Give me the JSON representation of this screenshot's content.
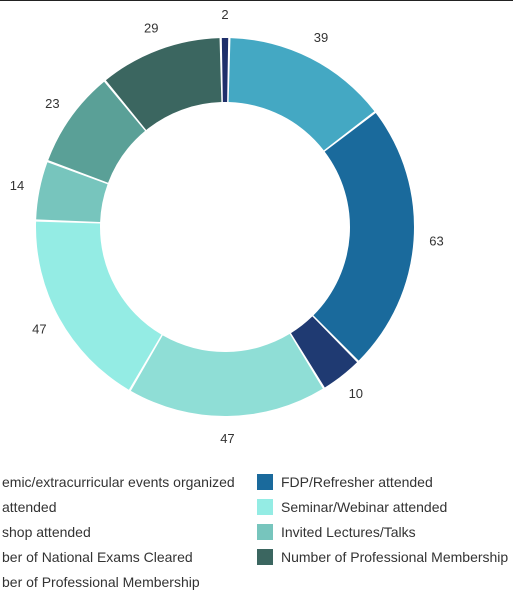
{
  "chart_data": {
    "type": "pie",
    "values": [
      2,
      39,
      63,
      10,
      47,
      47,
      14,
      23,
      29
    ],
    "colors": [
      "#1f2f6b",
      "#44a8c3",
      "#1a6a9c",
      "#1f3a72",
      "#8fded6",
      "#94ece4",
      "#77c5bd",
      "#5aa097",
      "#3b6660"
    ],
    "labels": [
      "2",
      "39",
      "63",
      "10",
      "47",
      "47",
      "14",
      "23",
      "29"
    ]
  },
  "legend": [
    {
      "text": "emic/extracurricular events organized",
      "color": "#1f2f6b"
    },
    {
      "text": "FDP/Refresher attended",
      "color": "#1a6a9c"
    },
    {
      "text": " attended",
      "color": "#44a8c3"
    },
    {
      "text": "Seminar/Webinar attended",
      "color": "#94ece4"
    },
    {
      "text": "shop attended",
      "color": "#8fded6"
    },
    {
      "text": "Invited Lectures/Talks",
      "color": "#77c5bd"
    },
    {
      "text": "ber of National Exams Cleared",
      "color": "#5aa097"
    },
    {
      "text": "Number of Professional Membership",
      "color": "#3b6660"
    },
    {
      "text": "ber of Professional Membership",
      "color": "#3b6660"
    }
  ]
}
